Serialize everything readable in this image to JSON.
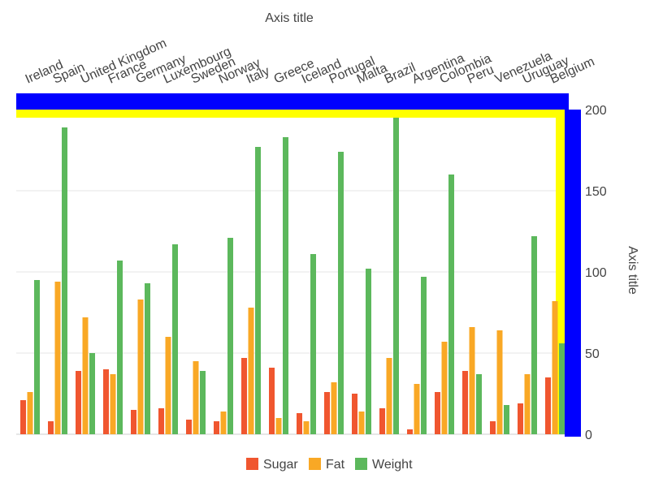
{
  "chart_data": {
    "type": "bar",
    "x_axis_title": "Axis title",
    "y_axis_title": "Axis title",
    "categories": [
      "Ireland",
      "Spain",
      "United Kingdom",
      "France",
      "Germany",
      "Luxembourg",
      "Sweden",
      "Norway",
      "Italy",
      "Greece",
      "Iceland",
      "Portugal",
      "Malta",
      "Brazil",
      "Argentina",
      "Colombia",
      "Peru",
      "Venezuela",
      "Uruguay",
      "Belgium"
    ],
    "series": [
      {
        "name": "Sugar",
        "color": "#f0562f",
        "values": [
          21,
          8,
          39,
          40,
          15,
          16,
          9,
          8,
          47,
          41,
          13,
          26,
          25,
          16,
          3,
          26,
          39,
          8,
          19,
          35
        ]
      },
      {
        "name": "Fat",
        "color": "#f9a825",
        "values": [
          26,
          94,
          72,
          37,
          83,
          60,
          45,
          14,
          78,
          10,
          8,
          32,
          14,
          47,
          31,
          57,
          66,
          64,
          37,
          82
        ]
      },
      {
        "name": "Weight",
        "color": "#5cb85c",
        "values": [
          95,
          189,
          50,
          107,
          93,
          117,
          39,
          121,
          177,
          183,
          111,
          174,
          102,
          195,
          97,
          160,
          37,
          18,
          122,
          56
        ]
      }
    ],
    "y_ticks": [
      "0",
      "50",
      "100",
      "150",
      "200"
    ],
    "ylim": [
      0,
      200
    ],
    "grid": true,
    "legend_position": "bottom",
    "highlight_colors": {
      "x_axis_band": "#0000ff",
      "y_axis_band": "#0000ff",
      "plot_frame": "#ffff00"
    }
  }
}
